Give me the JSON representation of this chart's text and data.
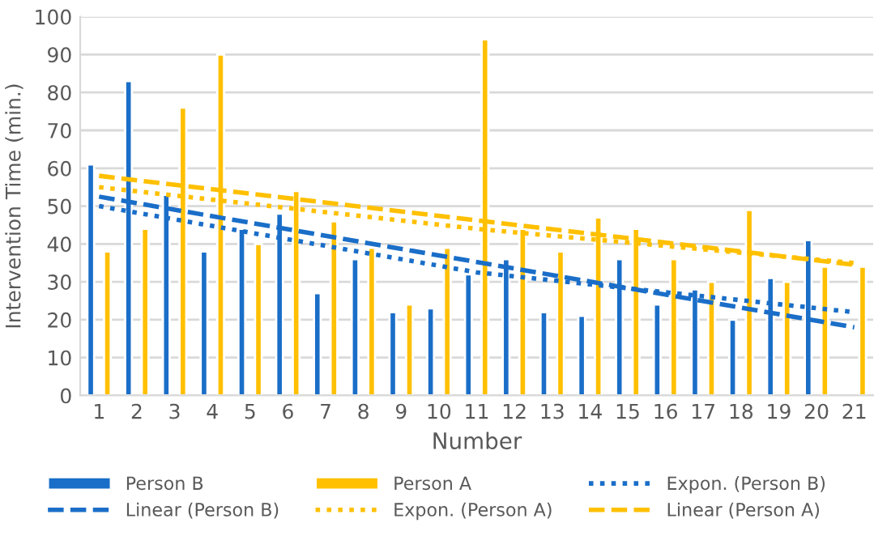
{
  "chart_data": {
    "type": "bar",
    "xlabel": "Number",
    "ylabel": "Intervention Time (min.)",
    "x": [
      1,
      2,
      3,
      4,
      5,
      6,
      7,
      8,
      9,
      10,
      11,
      12,
      13,
      14,
      15,
      16,
      17,
      18,
      19,
      20,
      21
    ],
    "xlim": [
      0.5,
      21.5
    ],
    "xticks": [
      1,
      2,
      3,
      4,
      5,
      6,
      7,
      8,
      9,
      10,
      11,
      12,
      13,
      14,
      15,
      16,
      17,
      18,
      19,
      20,
      21
    ],
    "ylim": [
      0,
      100
    ],
    "yticks": [
      0,
      10,
      20,
      30,
      40,
      50,
      60,
      70,
      80,
      90,
      100
    ],
    "grid": "y",
    "legend": "bottom",
    "series": [
      {
        "name": "Person B",
        "color": "#1a6ec8",
        "values": [
          61,
          83,
          53,
          38,
          44,
          48,
          27,
          36,
          22,
          23,
          32,
          36,
          22,
          21,
          36,
          24,
          28,
          20,
          31,
          41,
          null
        ]
      },
      {
        "name": "Person A",
        "color": "#ffc000",
        "values": [
          38,
          44,
          76,
          90,
          40,
          54,
          46,
          39,
          24,
          39,
          94,
          44,
          38,
          47,
          44,
          36,
          30,
          49,
          30,
          34,
          34
        ]
      },
      {
        "name": "Expon. (Person B)",
        "type": "line",
        "line_style": "dotted",
        "color": "#1a6ec8",
        "x": [
          1,
          11,
          21
        ],
        "values": [
          50,
          32.5,
          22
        ]
      },
      {
        "name": "Linear (Person B)",
        "type": "line",
        "line_style": "dashed",
        "color": "#1a6ec8",
        "x": [
          1,
          21
        ],
        "values": [
          52.5,
          18
        ]
      },
      {
        "name": "Expon. (Person A)",
        "type": "line",
        "line_style": "dotted",
        "color": "#ffc000",
        "x": [
          1,
          11,
          21
        ],
        "values": [
          55,
          44,
          35
        ]
      },
      {
        "name": "Linear (Person A)",
        "type": "line",
        "line_style": "dashed",
        "color": "#ffc000",
        "x": [
          1,
          21
        ],
        "values": [
          58,
          34.5
        ]
      }
    ]
  }
}
